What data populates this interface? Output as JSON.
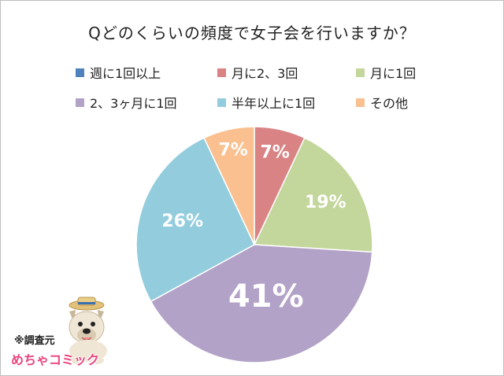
{
  "chart_data": {
    "type": "pie",
    "title": "Qどのくらいの頻度で女子会を行いますか？",
    "start_angle_deg": 0,
    "direction": "clockwise",
    "legend_position": "top",
    "slices": [
      {
        "label": "週に1回以上",
        "value": 0,
        "display": "",
        "color": "#4f81bd"
      },
      {
        "label": "月に2、3回",
        "value": 7,
        "display": "7%",
        "color": "#d98384"
      },
      {
        "label": "月に1回",
        "value": 19,
        "display": "19%",
        "color": "#c3d69b"
      },
      {
        "label": "2、3ヶ月に1回",
        "value": 41,
        "display": "41%",
        "color": "#b3a2c7"
      },
      {
        "label": "半年以上に1回",
        "value": 26,
        "display": "26%",
        "color": "#93cddd"
      },
      {
        "label": "その他",
        "value": 7,
        "display": "7%",
        "color": "#fac090"
      }
    ]
  },
  "credit": {
    "label": "※調査元",
    "logo_text": "めちゃコミック"
  }
}
